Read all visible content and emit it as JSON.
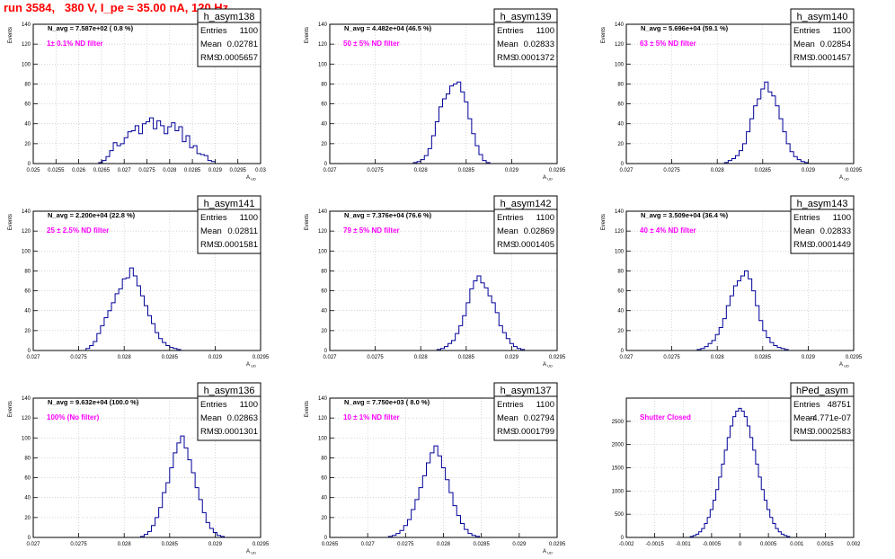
{
  "header": {
    "title": "run 3584,   380 V, I_pe ≈ 35.00 nA, 120 Hz"
  },
  "chart_data": [
    {
      "type": "bar",
      "name": "h_asym138",
      "stats": {
        "entries": "1100",
        "mean": "0.02781",
        "rms": "0.0005657"
      },
      "navg": "N_avg = 7.587e+02 ( 0.8 %)",
      "filter": "1± 0.1% ND filter",
      "xlabel": "A_UD",
      "ylabel": "Events",
      "xlim": [
        0.025,
        0.03
      ],
      "xticks": [
        "0.025",
        "0.0255",
        "0.026",
        "0.0265",
        "0.027",
        "0.0275",
        "0.028",
        "0.0285",
        "0.029",
        "0.0295",
        "0.03"
      ],
      "ylim": [
        0,
        140
      ],
      "yticks": [
        "0",
        "20",
        "40",
        "60",
        "80",
        "100",
        "120",
        "140"
      ],
      "grid": true,
      "x": [
        0.02648,
        0.02656,
        0.02664,
        0.02672,
        0.0268,
        0.02688,
        0.02696,
        0.02704,
        0.02712,
        0.0272,
        0.02728,
        0.02736,
        0.02744,
        0.02752,
        0.0276,
        0.02768,
        0.02776,
        0.02784,
        0.02792,
        0.028,
        0.02808,
        0.02816,
        0.02824,
        0.02832,
        0.0284,
        0.02848,
        0.02856,
        0.02864,
        0.02872,
        0.0288,
        0.02888,
        0.02896
      ],
      "values": [
        1,
        3,
        7,
        13,
        21,
        18,
        20,
        26,
        32,
        33,
        38,
        30,
        40,
        42,
        46,
        35,
        43,
        38,
        30,
        37,
        41,
        33,
        37,
        22,
        28,
        16,
        18,
        10,
        9,
        8,
        3,
        2
      ],
      "color": "#000099"
    },
    {
      "type": "bar",
      "name": "h_asym139",
      "stats": {
        "entries": "1100",
        "mean": "0.02833",
        "rms": "0.0001372"
      },
      "navg": "N_avg = 4.482e+04 (46.5 %)",
      "filter": "50 ± 5% ND filter",
      "xlabel": "A_UD",
      "ylabel": "Events",
      "xlim": [
        0.027,
        0.0295
      ],
      "xticks": [
        "0.027",
        "0.0275",
        "0.028",
        "0.0285",
        "0.029",
        "0.0295"
      ],
      "ylim": [
        0,
        140
      ],
      "yticks": [
        "0",
        "20",
        "40",
        "60",
        "80",
        "100",
        "120",
        "140"
      ],
      "grid": true,
      "x": [
        0.02794,
        0.02798,
        0.02802,
        0.02806,
        0.0281,
        0.02814,
        0.02818,
        0.02822,
        0.02826,
        0.0283,
        0.02834,
        0.02838,
        0.02842,
        0.02846,
        0.0285,
        0.02854,
        0.02858,
        0.02862,
        0.02866,
        0.0287,
        0.02874
      ],
      "values": [
        1,
        2,
        4,
        8,
        15,
        28,
        42,
        57,
        65,
        70,
        78,
        80,
        82,
        72,
        62,
        45,
        30,
        18,
        9,
        3,
        1
      ],
      "color": "#000099"
    },
    {
      "type": "bar",
      "name": "h_asym140",
      "stats": {
        "entries": "1100",
        "mean": "0.02854",
        "rms": "0.0001457"
      },
      "navg": "N_avg = 5.696e+04 (59.1 %)",
      "filter": "63 ± 5% ND filter",
      "xlabel": "A_UD",
      "ylabel": "Events",
      "xlim": [
        0.027,
        0.0295
      ],
      "xticks": [
        "0.027",
        "0.0275",
        "0.028",
        "0.0285",
        "0.029",
        "0.0295"
      ],
      "ylim": [
        0,
        140
      ],
      "yticks": [
        "0",
        "20",
        "40",
        "60",
        "80",
        "100",
        "120",
        "140"
      ],
      "grid": true,
      "x": [
        0.0281,
        0.02814,
        0.02818,
        0.02822,
        0.02826,
        0.0283,
        0.02834,
        0.02838,
        0.02842,
        0.02846,
        0.0285,
        0.02854,
        0.02858,
        0.02862,
        0.02866,
        0.0287,
        0.02874,
        0.02878,
        0.02882,
        0.02886,
        0.0289,
        0.02894,
        0.02898
      ],
      "values": [
        1,
        3,
        5,
        8,
        13,
        20,
        32,
        45,
        58,
        65,
        75,
        82,
        72,
        68,
        58,
        45,
        32,
        20,
        12,
        7,
        4,
        2,
        1
      ],
      "color": "#000099"
    },
    {
      "type": "bar",
      "name": "h_asym141",
      "stats": {
        "entries": "1100",
        "mean": "0.02811",
        "rms": "0.0001581"
      },
      "navg": "N_avg = 2.200e+04 (22.8 %)",
      "filter": "25 ± 2.5% ND filter",
      "xlabel": "A_UD",
      "ylabel": "Events",
      "xlim": [
        0.027,
        0.0295
      ],
      "xticks": [
        "0.027",
        "0.0275",
        "0.028",
        "0.0285",
        "0.029",
        "0.0295"
      ],
      "ylim": [
        0,
        140
      ],
      "yticks": [
        "0",
        "20",
        "40",
        "60",
        "80",
        "100",
        "120",
        "140"
      ],
      "grid": true,
      "x": [
        0.0276,
        0.02764,
        0.02768,
        0.02772,
        0.02776,
        0.0278,
        0.02784,
        0.02788,
        0.02792,
        0.02796,
        0.028,
        0.02804,
        0.02808,
        0.02812,
        0.02816,
        0.0282,
        0.02824,
        0.02828,
        0.02832,
        0.02836,
        0.0284,
        0.02844,
        0.02848,
        0.02852,
        0.02856,
        0.0286
      ],
      "values": [
        2,
        5,
        9,
        17,
        25,
        33,
        40,
        48,
        57,
        62,
        72,
        73,
        83,
        75,
        65,
        55,
        45,
        35,
        27,
        18,
        12,
        8,
        5,
        3,
        2,
        1
      ],
      "color": "#000099"
    },
    {
      "type": "bar",
      "name": "h_asym142",
      "stats": {
        "entries": "1100",
        "mean": "0.02869",
        "rms": "0.0001405"
      },
      "navg": "N_avg = 7.376e+04 (76.6 %)",
      "filter": "79 ± 5% ND filter",
      "xlabel": "A_UD",
      "ylabel": "Events",
      "xlim": [
        0.027,
        0.0295
      ],
      "xticks": [
        "0.027",
        "0.0275",
        "0.028",
        "0.0285",
        "0.029",
        "0.0295"
      ],
      "ylim": [
        0,
        140
      ],
      "yticks": [
        "0",
        "20",
        "40",
        "60",
        "80",
        "100",
        "120",
        "140"
      ],
      "grid": true,
      "x": [
        0.0282,
        0.02824,
        0.02828,
        0.02832,
        0.02836,
        0.0284,
        0.02844,
        0.02848,
        0.02852,
        0.02856,
        0.0286,
        0.02864,
        0.02868,
        0.02872,
        0.02876,
        0.0288,
        0.02884,
        0.02888,
        0.02892,
        0.02896,
        0.029,
        0.02904,
        0.02908,
        0.02912
      ],
      "values": [
        1,
        2,
        4,
        7,
        10,
        17,
        25,
        35,
        48,
        62,
        70,
        75,
        68,
        63,
        55,
        48,
        38,
        25,
        18,
        12,
        7,
        4,
        2,
        1
      ],
      "color": "#000099"
    },
    {
      "type": "bar",
      "name": "h_asym143",
      "stats": {
        "entries": "1100",
        "mean": "0.02833",
        "rms": "0.0001449"
      },
      "navg": "N_avg = 3.509e+04 (36.4 %)",
      "filter": "40 ± 4% ND filter",
      "xlabel": "A_UD",
      "ylabel": "Events",
      "xlim": [
        0.027,
        0.0295
      ],
      "xticks": [
        "0.027",
        "0.0275",
        "0.028",
        "0.0285",
        "0.029",
        "0.0295"
      ],
      "ylim": [
        0,
        140
      ],
      "yticks": [
        "0",
        "20",
        "40",
        "60",
        "80",
        "100",
        "120",
        "140"
      ],
      "grid": true,
      "x": [
        0.0278,
        0.02784,
        0.02788,
        0.02792,
        0.02796,
        0.028,
        0.02804,
        0.02808,
        0.02812,
        0.02816,
        0.0282,
        0.02824,
        0.02828,
        0.02832,
        0.02836,
        0.0284,
        0.02844,
        0.02848,
        0.02852,
        0.02856,
        0.0286,
        0.02864,
        0.02868,
        0.02872,
        0.02876
      ],
      "values": [
        1,
        2,
        4,
        7,
        10,
        16,
        23,
        32,
        45,
        55,
        65,
        70,
        75,
        80,
        72,
        60,
        45,
        30,
        20,
        13,
        8,
        5,
        3,
        2,
        1
      ],
      "color": "#000099"
    },
    {
      "type": "bar",
      "name": "h_asym136",
      "stats": {
        "entries": "1100",
        "mean": "0.02863",
        "rms": "0.0001301"
      },
      "navg": "N_avg = 9.632e+04 (100.0 %)",
      "filter": "100% (No filter)",
      "xlabel": "A_UD",
      "ylabel": "Events",
      "xlim": [
        0.027,
        0.0295
      ],
      "xticks": [
        "0.027",
        "0.0275",
        "0.028",
        "0.0285",
        "0.029",
        "0.0295"
      ],
      "ylim": [
        0,
        140
      ],
      "yticks": [
        "0",
        "20",
        "40",
        "60",
        "80",
        "100",
        "120",
        "140"
      ],
      "grid": true,
      "x": [
        0.0282,
        0.02824,
        0.02828,
        0.02832,
        0.02836,
        0.0284,
        0.02844,
        0.02848,
        0.02852,
        0.02856,
        0.0286,
        0.02864,
        0.02868,
        0.02872,
        0.02876,
        0.0288,
        0.02884,
        0.02888,
        0.02892,
        0.02896,
        0.029,
        0.02904,
        0.02908
      ],
      "values": [
        1,
        3,
        6,
        12,
        20,
        30,
        45,
        55,
        70,
        85,
        95,
        102,
        90,
        78,
        65,
        50,
        38,
        25,
        15,
        9,
        5,
        2,
        1
      ],
      "color": "#000099"
    },
    {
      "type": "bar",
      "name": "h_asym137",
      "stats": {
        "entries": "1100",
        "mean": "0.02794",
        "rms": "0.0001799"
      },
      "navg": "N_avg = 7.750e+03 ( 8.0 %)",
      "filter": "10 ± 1% ND filter",
      "xlabel": "A_UD",
      "ylabel": "Events",
      "xlim": [
        0.0265,
        0.0295
      ],
      "xticks": [
        "0.0265",
        "0.027",
        "0.0275",
        "0.028",
        "0.0285",
        "0.029",
        "0.0295"
      ],
      "ylim": [
        0,
        140
      ],
      "yticks": [
        "0",
        "20",
        "40",
        "60",
        "80",
        "100",
        "120",
        "140"
      ],
      "grid": true,
      "x": [
        0.0273,
        0.02735,
        0.0274,
        0.02745,
        0.0275,
        0.02755,
        0.0276,
        0.02765,
        0.0277,
        0.02775,
        0.0278,
        0.02785,
        0.0279,
        0.02795,
        0.028,
        0.02805,
        0.0281,
        0.02815,
        0.0282,
        0.02825,
        0.0283,
        0.02835,
        0.0284,
        0.02845
      ],
      "values": [
        1,
        2,
        4,
        7,
        12,
        18,
        28,
        38,
        50,
        62,
        75,
        85,
        92,
        82,
        70,
        58,
        45,
        32,
        22,
        14,
        8,
        4,
        2,
        1
      ],
      "color": "#000099"
    },
    {
      "type": "bar",
      "name": "hPed_asym",
      "stats": {
        "entries": "48751",
        "mean": "-4.771e-07",
        "rms": "0.0002583"
      },
      "navg": "",
      "filter": "Shutter Closed",
      "xlabel": "",
      "ylabel": "",
      "xlim": [
        -0.002,
        0.002
      ],
      "xticks": [
        "-0.002",
        "-0.0015",
        "-0.001",
        "-0.0005",
        "0",
        "0.0005",
        "0.001",
        "0.0015",
        "0.002"
      ],
      "ylim": [
        0,
        3000
      ],
      "yticks": [
        "0",
        "500",
        "1000",
        "1500",
        "2000",
        "2500"
      ],
      "grid": true,
      "x": [
        -0.00085,
        -0.0008,
        -0.00075,
        -0.0007,
        -0.00065,
        -0.0006,
        -0.00055,
        -0.0005,
        -0.00045,
        -0.0004,
        -0.00035,
        -0.0003,
        -0.00025,
        -0.0002,
        -0.00015,
        -0.0001,
        -5e-05,
        0,
        5e-05,
        0.0001,
        0.00015,
        0.0002,
        0.00025,
        0.0003,
        0.00035,
        0.0004,
        0.00045,
        0.0005,
        0.00055,
        0.0006,
        0.00065,
        0.0007,
        0.00075,
        0.0008,
        0.00085
      ],
      "values": [
        20,
        40,
        70,
        120,
        190,
        300,
        430,
        600,
        800,
        1030,
        1300,
        1580,
        1880,
        2150,
        2400,
        2600,
        2720,
        2780,
        2720,
        2600,
        2400,
        2150,
        1880,
        1580,
        1300,
        1030,
        800,
        600,
        430,
        300,
        190,
        120,
        70,
        40,
        20
      ],
      "color": "#000099"
    }
  ],
  "labels": {
    "entries": "Entries",
    "mean": "Mean",
    "rms": "RMS"
  }
}
